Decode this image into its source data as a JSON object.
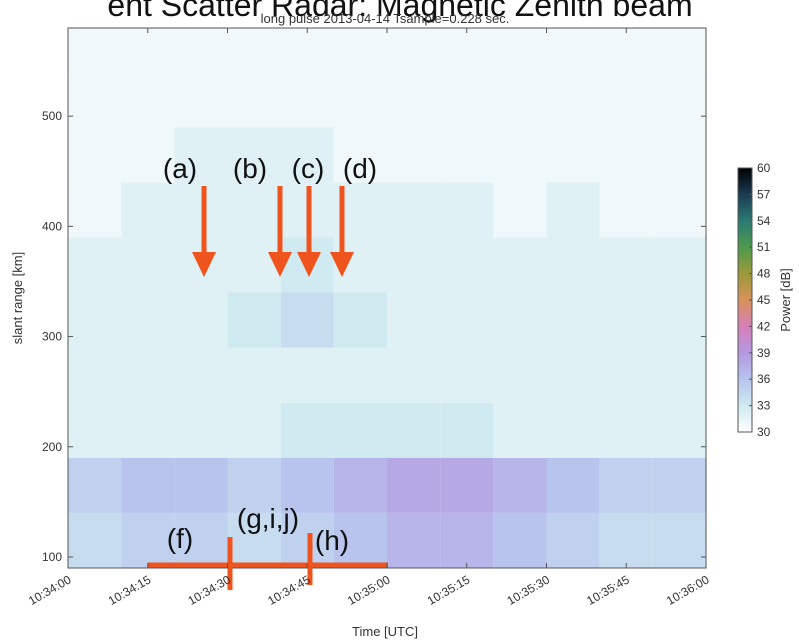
{
  "chart_data": {
    "type": "heatmap",
    "title": "ent Scatter Radar: Magnetic Zenith beam",
    "subtitle": "long pulse  2013-04-14  Tsample=0.228 sec.",
    "x_label": "Time [UTC]",
    "y_label": "slant range [km]",
    "colorbar_label": "Power [dB]",
    "xlim": [
      "10:34:00",
      "10:36:00"
    ],
    "xticks": [
      "10:34:00",
      "10:34:15",
      "10:34:30",
      "10:34:45",
      "10:35:00",
      "10:35:15",
      "10:35:30",
      "10:35:45",
      "10:36:00"
    ],
    "ylim": [
      90,
      580
    ],
    "yticks": [
      100,
      200,
      300,
      400,
      500
    ],
    "clim": [
      30,
      60
    ],
    "cticks": [
      30,
      33,
      36,
      39,
      42,
      45,
      48,
      51,
      54,
      57,
      60
    ],
    "colormap": [
      "#ffffff",
      "#cfeaf0",
      "#b8c4ee",
      "#b598e0",
      "#d67fb8",
      "#d9925a",
      "#9c9a3a",
      "#4e9a4e",
      "#2a7a74",
      "#1c3a52",
      "#000000"
    ],
    "x": [
      "10:34:00",
      "10:34:10",
      "10:34:20",
      "10:34:30",
      "10:34:40",
      "10:34:50",
      "10:35:00",
      "10:35:10",
      "10:35:20",
      "10:35:30",
      "10:35:40",
      "10:35:50"
    ],
    "y": [
      90,
      140,
      190,
      240,
      290,
      340,
      390,
      440,
      490,
      540
    ],
    "z": [
      [
        34,
        35,
        35,
        34,
        35,
        36,
        37,
        37,
        36,
        35,
        34,
        34
      ],
      [
        35,
        36,
        36,
        35,
        36,
        37,
        38,
        38,
        37,
        36,
        35,
        35
      ],
      [
        32,
        32,
        32,
        32,
        33,
        33,
        33,
        33,
        32,
        32,
        32,
        32
      ],
      [
        32,
        32,
        32,
        32,
        32,
        32,
        32,
        32,
        32,
        32,
        32,
        32
      ],
      [
        32,
        32,
        32,
        33,
        34,
        33,
        32,
        32,
        32,
        32,
        32,
        32
      ],
      [
        32,
        32,
        32,
        32,
        33,
        32,
        32,
        32,
        32,
        32,
        32,
        32
      ],
      [
        31,
        32,
        32,
        32,
        32,
        32,
        32,
        32,
        31,
        32,
        31,
        31
      ],
      [
        31,
        31,
        32,
        32,
        32,
        31,
        31,
        31,
        31,
        31,
        31,
        31
      ],
      [
        31,
        31,
        31,
        31,
        31,
        31,
        31,
        31,
        31,
        31,
        31,
        31
      ],
      [
        31,
        31,
        31,
        31,
        31,
        31,
        31,
        31,
        31,
        31,
        31,
        31
      ]
    ],
    "annotations": [
      "(a)",
      "(b)",
      "(c)",
      "(d)",
      "(f)",
      "(g,i,j)",
      "(h)"
    ]
  }
}
